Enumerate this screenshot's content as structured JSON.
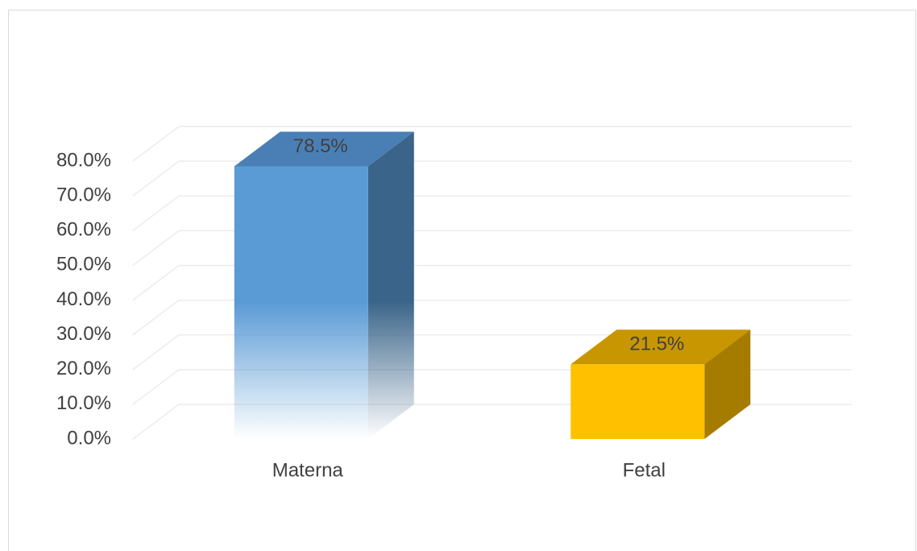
{
  "chart_data": {
    "type": "bar3d",
    "categories": [
      "Materna",
      "Fetal"
    ],
    "values": [
      78.5,
      21.5
    ],
    "value_labels": [
      "78.5%",
      "21.5%"
    ],
    "colors": [
      "#5b9bd5",
      "#ffc000"
    ],
    "ylim": [
      0,
      80
    ],
    "yticks": [
      {
        "value": 0,
        "label": "0.0%"
      },
      {
        "value": 10,
        "label": "10.0%"
      },
      {
        "value": 20,
        "label": "20.0%"
      },
      {
        "value": 30,
        "label": "30.0%"
      },
      {
        "value": 40,
        "label": "40.0%"
      },
      {
        "value": 50,
        "label": "50.0%"
      },
      {
        "value": 60,
        "label": "60.0%"
      },
      {
        "value": 70,
        "label": "70.0%"
      },
      {
        "value": 80,
        "label": "80.0%"
      }
    ],
    "grid": true
  }
}
